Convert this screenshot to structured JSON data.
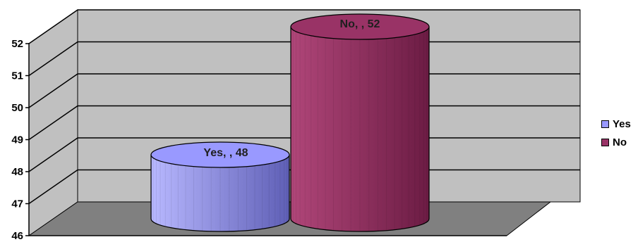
{
  "chart_data": {
    "type": "bar",
    "style": "3d-cylinder",
    "categories": [
      "Yes",
      "No"
    ],
    "values": [
      48,
      52
    ],
    "data_labels": [
      "Yes, , 48",
      "No, , 52"
    ],
    "ylim": [
      46,
      52
    ],
    "yticks": [
      46,
      47,
      48,
      49,
      50,
      51,
      52
    ],
    "grid": true,
    "legend": "right",
    "legend_entries": [
      "Yes",
      "No"
    ],
    "colors": {
      "Yes": "#9999ff",
      "No": "#993366",
      "wall": "#c0c0c0",
      "floor": "#808080"
    }
  }
}
